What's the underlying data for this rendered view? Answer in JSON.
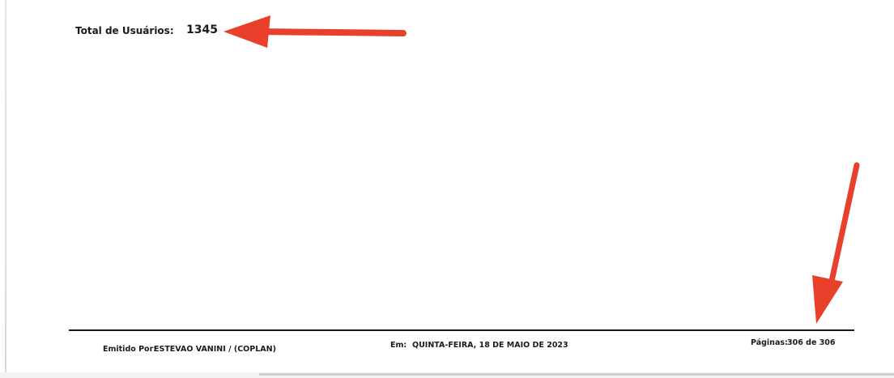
{
  "summary": {
    "total_label": "Total de Usuários:",
    "total_value": "1345"
  },
  "footer": {
    "issued_by_label": "Emitido Por:",
    "issued_by_value": "ESTEVAO VANINI / (COPLAN)",
    "date_label": "Em:",
    "date_value": "QUINTA-FEIRA, 18 DE MAIO DE 2023",
    "pages_label": "Páginas:",
    "pages_value": "306 de 306"
  },
  "annotations": {
    "arrow_color": "#e8402a",
    "items": [
      "arrow-icon",
      "arrow-icon"
    ]
  }
}
